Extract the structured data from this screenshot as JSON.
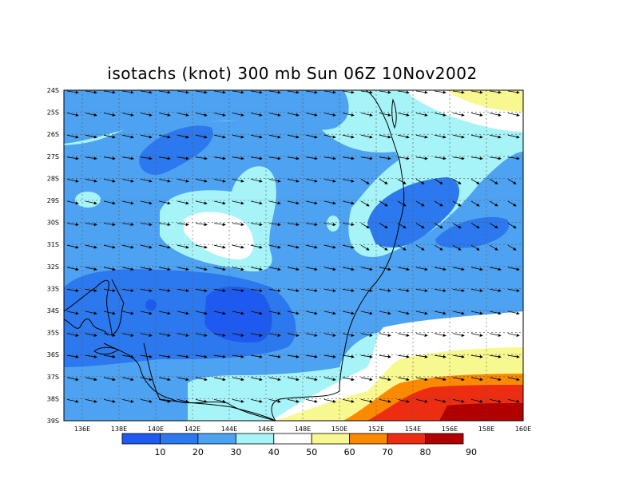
{
  "title": "isotachs (knot) 300 mb Sun 06Z 10Nov2002",
  "chart_data": {
    "type": "heatmap",
    "variable": "isotachs (knot)",
    "level": "300 mb",
    "time": "Sun 06Z 10Nov2002",
    "lon_range": [
      135,
      160
    ],
    "lat_range": [
      -39,
      -24
    ],
    "x_ticks": [
      "136E",
      "138E",
      "140E",
      "142E",
      "144E",
      "146E",
      "148E",
      "150E",
      "152E",
      "154E",
      "156E",
      "158E",
      "160E"
    ],
    "y_ticks": [
      "24S",
      "25S",
      "26S",
      "27S",
      "28S",
      "29S",
      "30S",
      "31S",
      "32S",
      "33S",
      "34S",
      "35S",
      "36S",
      "37S",
      "38S",
      "39S"
    ],
    "grid": true,
    "colorbar": {
      "labels": [
        "10",
        "20",
        "30",
        "40",
        "50",
        "60",
        "70",
        "80",
        "90"
      ],
      "colors": [
        "#1e5af0",
        "#2c78ee",
        "#4ea2f2",
        "#a6f4f8",
        "#ffffff",
        "#f8f890",
        "#fb8a00",
        "#ec2d12",
        "#b00000"
      ]
    }
  }
}
